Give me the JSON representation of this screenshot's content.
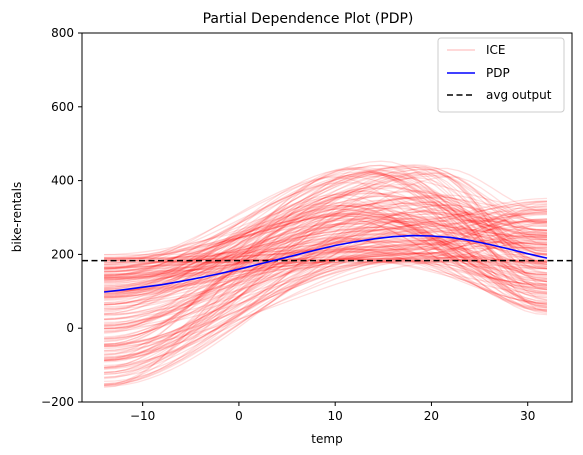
{
  "chart_data": {
    "type": "line",
    "title": "Partial Dependence Plot (PDP)",
    "xlabel": "temp",
    "ylabel": "bike-rentals",
    "xlim": [
      -16.3,
      34.6
    ],
    "ylim": [
      -200,
      800
    ],
    "x_ticks": [
      -10,
      0,
      10,
      20,
      30
    ],
    "y_ticks": [
      -200,
      0,
      200,
      400,
      600,
      800
    ],
    "grid": false,
    "legend_position": "top-right",
    "series": [
      {
        "name": "ICE",
        "style": "thin translucent lines, one per instance",
        "color": "#ff0000",
        "x_range": [
          -14,
          32
        ],
        "count": 200,
        "summary": "individual curves starting between about -160 and 200 at temp -14, peaking between about 180 and 450 near temp 12-20, ending between about 40 and 350 at temp 32"
      },
      {
        "name": "PDP",
        "color": "#0000ff",
        "x": [
          -14,
          -12,
          -10,
          -8,
          -6,
          -4,
          -2,
          0,
          2,
          4,
          6,
          8,
          10,
          12,
          14,
          16,
          18,
          20,
          22,
          24,
          26,
          28,
          30,
          32
        ],
        "y": [
          98,
          104,
          111,
          118,
          127,
          137,
          148,
          160,
          173,
          186,
          199,
          212,
          224,
          234,
          242,
          248,
          251,
          250,
          246,
          238,
          227,
          215,
          202,
          190
        ]
      },
      {
        "name": "avg output",
        "color": "#000000",
        "style": "dashed horizontal line",
        "y": 183
      }
    ]
  }
}
